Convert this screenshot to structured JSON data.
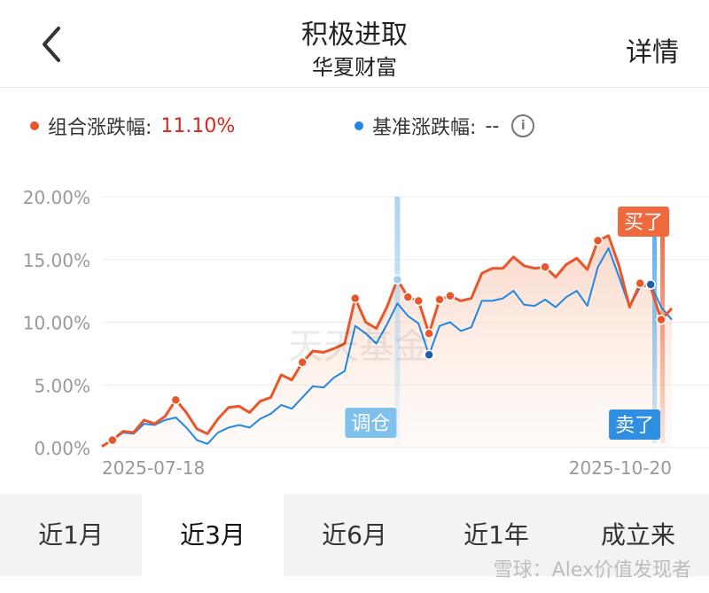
{
  "header": {
    "title": "积极进取",
    "subtitle": "华夏财富",
    "detail_label": "详情"
  },
  "legend": {
    "portfolio_label": "组合涨跌幅:",
    "portfolio_value": "11.10%",
    "benchmark_label": "基准涨跌幅:",
    "benchmark_value": "--",
    "portfolio_color": "#e8562a",
    "benchmark_color": "#1e88e5"
  },
  "chart_data": {
    "type": "line",
    "y_ticks": [
      "20.00%",
      "15.00%",
      "10.00%",
      "5.00%",
      "0.00%"
    ],
    "ylim": [
      0,
      20
    ],
    "x_labels": [
      "2025-07-18",
      "2025-10-20"
    ],
    "series": [
      {
        "name": "组合涨跌幅",
        "values": [
          0.1,
          0.6,
          1.3,
          1.2,
          2.2,
          1.9,
          2.5,
          3.8,
          2.8,
          1.5,
          1.1,
          2.3,
          3.2,
          3.3,
          2.8,
          3.7,
          4.0,
          5.8,
          5.4,
          6.8,
          7.7,
          7.6,
          7.9,
          8.3,
          11.9,
          10.0,
          9.5,
          11.2,
          13.4,
          12.0,
          11.7,
          9.1,
          11.8,
          12.1,
          11.7,
          11.9,
          13.9,
          14.3,
          14.3,
          15.2,
          14.5,
          14.3,
          14.4,
          13.6,
          14.6,
          15.1,
          14.2,
          16.5,
          16.9,
          14.5,
          11.2,
          13.1,
          12.8,
          10.2,
          11.1
        ],
        "color": "#e8562a"
      },
      {
        "name": "基准",
        "values": [
          0.1,
          0.6,
          1.2,
          1.1,
          1.9,
          1.8,
          2.2,
          2.4,
          1.6,
          0.6,
          0.3,
          1.2,
          1.6,
          1.8,
          1.6,
          2.3,
          2.7,
          3.4,
          3.1,
          4.0,
          4.9,
          4.8,
          5.6,
          6.1,
          9.7,
          9.1,
          8.3,
          9.8,
          11.5,
          10.5,
          9.9,
          7.4,
          9.7,
          10.0,
          9.3,
          9.6,
          11.7,
          11.7,
          11.9,
          12.5,
          11.4,
          11.3,
          11.8,
          11.2,
          12.0,
          12.5,
          11.3,
          14.4,
          15.9,
          13.6,
          11.2,
          12.8,
          13.0,
          11.2,
          10.2
        ],
        "color": "#1e88e5"
      }
    ],
    "annotations": [
      {
        "label": "调仓",
        "index": 28,
        "color": "#7fc0ec"
      },
      {
        "label": "卖了",
        "index": 53,
        "color": "#2f8ee0"
      },
      {
        "label": "买了",
        "index": 53,
        "color": "#ee6a3e"
      }
    ],
    "markers_portfolio": [
      1,
      7,
      19,
      24,
      28,
      29,
      30,
      31,
      32,
      33,
      42,
      47,
      51,
      53
    ],
    "markers_benchmark": [
      31,
      52
    ]
  },
  "watermark": {
    "center": "天天基金",
    "corner": "雪球：Alex价值发现者"
  },
  "tabs": [
    {
      "label": "近1月",
      "active": false
    },
    {
      "label": "近3月",
      "active": true
    },
    {
      "label": "近6月",
      "active": false
    },
    {
      "label": "近1年",
      "active": false
    },
    {
      "label": "成立来",
      "active": false
    }
  ]
}
